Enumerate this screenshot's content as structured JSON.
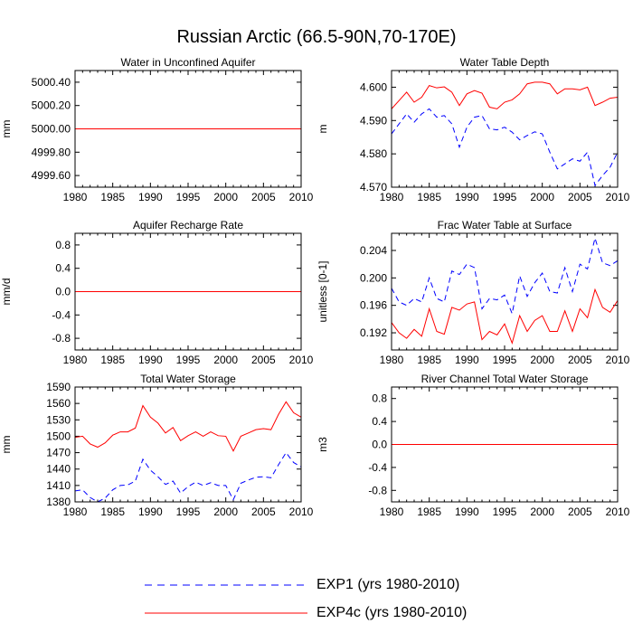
{
  "title": "Russian Arctic (66.5-90N,70-170E)",
  "colors": {
    "exp1": "#0000ff",
    "exp4c": "#ff0000",
    "axis": "#000000"
  },
  "legend": [
    {
      "label": "EXP1 (yrs 1980-2010)",
      "style": "dashed",
      "color": "#0000ff"
    },
    {
      "label": "EXP4c (yrs 1980-2010)",
      "style": "solid",
      "color": "#ff0000"
    }
  ],
  "chart_data": [
    {
      "id": "water-unconfined",
      "type": "line",
      "title": "Water in Unconfined Aquifer",
      "ylabel": "mm",
      "xlim": [
        1980,
        2010
      ],
      "ylim": [
        4999.5,
        5000.5
      ],
      "xticks": [
        1980,
        1985,
        1990,
        1995,
        2000,
        2005,
        2010
      ],
      "yticks": [
        4999.6,
        4999.8,
        5000.0,
        5000.2,
        5000.4
      ],
      "yticklabels": [
        "4999.60",
        "4999.80",
        "5000.00",
        "5000.20",
        "5000.40"
      ],
      "x": [
        1980,
        2010
      ],
      "series": [
        {
          "name": "EXP1",
          "values": [
            5000.0,
            5000.0
          ]
        },
        {
          "name": "EXP4c",
          "values": [
            5000.0,
            5000.0
          ]
        }
      ]
    },
    {
      "id": "water-table-depth",
      "type": "line",
      "title": "Water Table Depth",
      "ylabel": "m",
      "xlim": [
        1980,
        2010
      ],
      "ylim": [
        4.57,
        4.605
      ],
      "xticks": [
        1980,
        1985,
        1990,
        1995,
        2000,
        2005,
        2010
      ],
      "yticks": [
        4.57,
        4.58,
        4.59,
        4.6
      ],
      "yticklabels": [
        "4.570",
        "4.580",
        "4.590",
        "4.600"
      ],
      "x": [
        1980,
        1981,
        1982,
        1983,
        1984,
        1985,
        1986,
        1987,
        1988,
        1989,
        1990,
        1991,
        1992,
        1993,
        1994,
        1995,
        1996,
        1997,
        1998,
        1999,
        2000,
        2001,
        2002,
        2003,
        2004,
        2005,
        2006,
        2007,
        2008,
        2009,
        2010
      ],
      "series": [
        {
          "name": "EXP1",
          "values": [
            4.586,
            4.589,
            4.592,
            4.5895,
            4.592,
            4.5935,
            4.591,
            4.5915,
            4.589,
            4.582,
            4.588,
            4.591,
            4.5915,
            4.5875,
            4.5872,
            4.588,
            4.5865,
            4.5842,
            4.5855,
            4.5866,
            4.586,
            4.5805,
            4.5755,
            4.577,
            4.5785,
            4.5778,
            4.5805,
            4.5705,
            4.5735,
            4.576,
            4.5805
          ]
        },
        {
          "name": "EXP4c",
          "values": [
            4.5935,
            4.596,
            4.5985,
            4.5955,
            4.597,
            4.6005,
            4.5998,
            4.6001,
            4.5985,
            4.5945,
            4.598,
            4.599,
            4.5982,
            4.594,
            4.5935,
            4.5955,
            4.5962,
            4.598,
            4.601,
            4.6015,
            4.6015,
            4.601,
            4.598,
            4.5995,
            4.5995,
            4.5992,
            4.6,
            4.5945,
            4.5955,
            4.5967,
            4.597
          ]
        }
      ]
    },
    {
      "id": "aquifer-recharge",
      "type": "line",
      "title": "Aquifer Recharge Rate",
      "ylabel": "mm/d",
      "xlim": [
        1980,
        2010
      ],
      "ylim": [
        -1.0,
        1.0
      ],
      "xticks": [
        1980,
        1985,
        1990,
        1995,
        2000,
        2005,
        2010
      ],
      "yticks": [
        -0.8,
        -0.4,
        0.0,
        0.4,
        0.8
      ],
      "yticklabels": [
        "-0.8",
        "-0.4",
        "0.0",
        "0.4",
        "0.8"
      ],
      "x": [
        1980,
        2010
      ],
      "series": [
        {
          "name": "EXP1",
          "values": [
            0.0,
            0.0
          ]
        },
        {
          "name": "EXP4c",
          "values": [
            0.0,
            0.0
          ]
        }
      ]
    },
    {
      "id": "frac-water-table",
      "type": "line",
      "title": "Frac Water Table at Surface",
      "ylabel": "unitless [0-1]",
      "xlim": [
        1980,
        2010
      ],
      "ylim": [
        0.1895,
        0.2065
      ],
      "xticks": [
        1980,
        1985,
        1990,
        1995,
        2000,
        2005,
        2010
      ],
      "yticks": [
        0.192,
        0.196,
        0.2,
        0.204
      ],
      "yticklabels": [
        "0.192",
        "0.196",
        "0.200",
        "0.204"
      ],
      "x": [
        1980,
        1981,
        1982,
        1983,
        1984,
        1985,
        1986,
        1987,
        1988,
        1989,
        1990,
        1991,
        1992,
        1993,
        1994,
        1995,
        1996,
        1997,
        1998,
        1999,
        2000,
        2001,
        2002,
        2003,
        2004,
        2005,
        2006,
        2007,
        2008,
        2009,
        2010
      ],
      "series": [
        {
          "name": "EXP1",
          "values": [
            0.1985,
            0.1965,
            0.196,
            0.197,
            0.1965,
            0.2,
            0.197,
            0.1965,
            0.201,
            0.2005,
            0.202,
            0.2015,
            0.1955,
            0.197,
            0.1968,
            0.1975,
            0.1948,
            0.2003,
            0.1973,
            0.1993,
            0.2007,
            0.198,
            0.1978,
            0.2015,
            0.198,
            0.202,
            0.2013,
            0.2058,
            0.2022,
            0.2018,
            0.2025
          ]
        },
        {
          "name": "EXP4c",
          "values": [
            0.1935,
            0.192,
            0.1912,
            0.1925,
            0.1915,
            0.1955,
            0.1922,
            0.1918,
            0.1957,
            0.1953,
            0.1962,
            0.1965,
            0.191,
            0.1922,
            0.1917,
            0.1933,
            0.1905,
            0.1945,
            0.1922,
            0.1938,
            0.1945,
            0.1922,
            0.1922,
            0.1952,
            0.1922,
            0.1955,
            0.1942,
            0.1983,
            0.1957,
            0.195,
            0.1967
          ]
        }
      ]
    },
    {
      "id": "total-water-storage",
      "type": "line",
      "title": "Total Water Storage",
      "ylabel": "mm",
      "xlim": [
        1980,
        2010
      ],
      "ylim": [
        1380,
        1590
      ],
      "xticks": [
        1980,
        1985,
        1990,
        1995,
        2000,
        2005,
        2010
      ],
      "yticks": [
        1380,
        1410,
        1440,
        1470,
        1500,
        1530,
        1560,
        1590
      ],
      "yticklabels": [
        "1380",
        "1410",
        "1440",
        "1470",
        "1500",
        "1530",
        "1560",
        "1590"
      ],
      "x": [
        1980,
        1981,
        1982,
        1983,
        1984,
        1985,
        1986,
        1987,
        1988,
        1989,
        1990,
        1991,
        1992,
        1993,
        1994,
        1995,
        1996,
        1997,
        1998,
        1999,
        2000,
        2001,
        2002,
        2003,
        2004,
        2005,
        2006,
        2007,
        2008,
        2009,
        2010
      ],
      "series": [
        {
          "name": "EXP1",
          "values": [
            1400,
            1402,
            1388,
            1380,
            1387,
            1402,
            1410,
            1411,
            1418,
            1458,
            1438,
            1426,
            1412,
            1418,
            1396,
            1408,
            1416,
            1410,
            1415,
            1410,
            1410,
            1384,
            1414,
            1420,
            1425,
            1426,
            1424,
            1448,
            1470,
            1452,
            1444
          ]
        },
        {
          "name": "EXP4c",
          "values": [
            1498,
            1500,
            1486,
            1480,
            1488,
            1502,
            1508,
            1508,
            1515,
            1556,
            1535,
            1524,
            1506,
            1516,
            1492,
            1501,
            1508,
            1500,
            1508,
            1501,
            1500,
            1473,
            1500,
            1506,
            1512,
            1514,
            1512,
            1540,
            1563,
            1543,
            1535
          ]
        }
      ]
    },
    {
      "id": "river-channel",
      "type": "line",
      "title": "River Channel Total Water Storage",
      "ylabel": "m3",
      "xlim": [
        1980,
        2010
      ],
      "ylim": [
        -1.0,
        1.0
      ],
      "xticks": [
        1980,
        1985,
        1990,
        1995,
        2000,
        2005,
        2010
      ],
      "yticks": [
        -0.8,
        -0.4,
        0.0,
        0.4,
        0.8
      ],
      "yticklabels": [
        "-0.8",
        "-0.4",
        "0.0",
        "0.4",
        "0.8"
      ],
      "x": [
        1980,
        2010
      ],
      "series": [
        {
          "name": "EXP1",
          "values": [
            0.0,
            0.0
          ]
        },
        {
          "name": "EXP4c",
          "values": [
            0.0,
            0.0
          ]
        }
      ]
    }
  ]
}
